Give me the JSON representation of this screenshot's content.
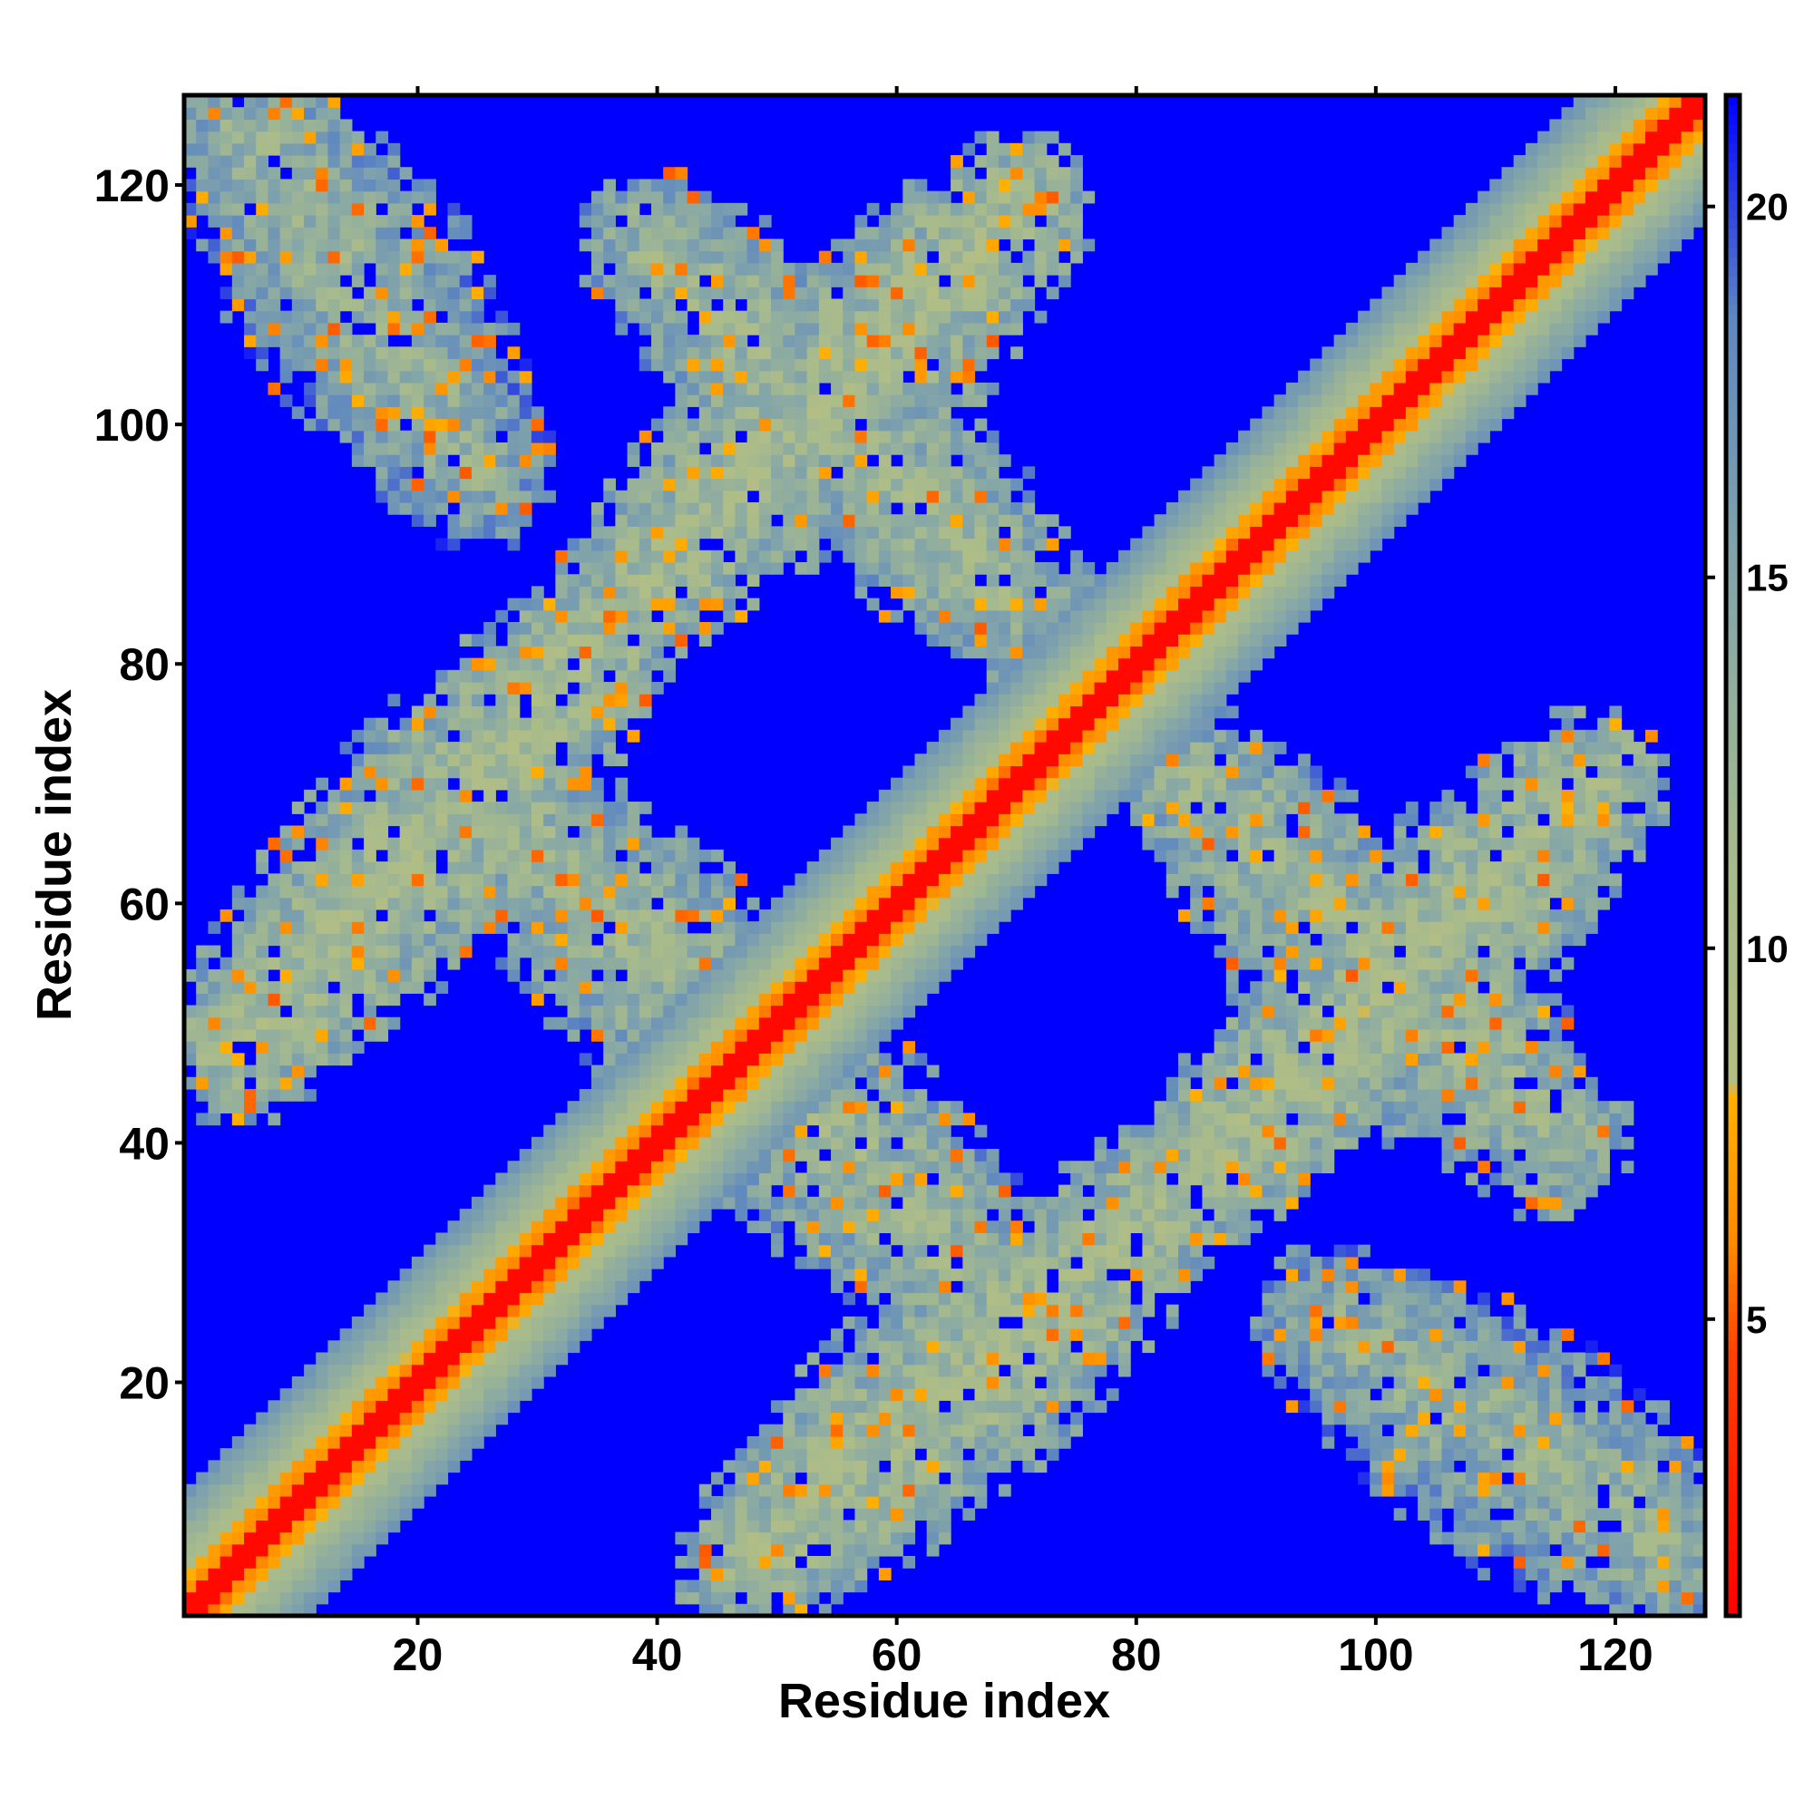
{
  "chart_data": {
    "type": "heatmap",
    "title": "",
    "xlabel": "Residue index",
    "ylabel": "Residue index",
    "xlim": [
      1,
      127
    ],
    "ylim": [
      1,
      127
    ],
    "x_ticks": [
      20,
      40,
      60,
      80,
      100,
      120
    ],
    "y_ticks": [
      20,
      40,
      60,
      80,
      100,
      120
    ],
    "colorbar": {
      "range": [
        1,
        21.5
      ],
      "ticks": [
        5,
        10,
        15,
        20
      ],
      "stops": [
        {
          "value": 1.0,
          "color": "#ff0000"
        },
        {
          "value": 4.5,
          "color": "#ff4000"
        },
        {
          "value": 6.0,
          "color": "#ff8a00"
        },
        {
          "value": 8.0,
          "color": "#ffb000"
        },
        {
          "value": 8.2,
          "color": "#b4be84"
        },
        {
          "value": 11.0,
          "color": "#a8bb8c"
        },
        {
          "value": 15.0,
          "color": "#84a6a8"
        },
        {
          "value": 18.5,
          "color": "#5f88c0"
        },
        {
          "value": 21.5,
          "color": "#0000ff"
        }
      ]
    },
    "structure": {
      "n_residues": 127,
      "background_value": 21.5,
      "diagonal": {
        "core_value": 1.5,
        "orange_halfwidth": 3,
        "band_halfwidth": 10
      },
      "contact_regions": [
        {
          "name": "parallel",
          "residues_a": [
            5,
            35
          ],
          "residues_b": [
            48,
            82
          ],
          "value": 11
        },
        {
          "name": "parallel",
          "residues_a": [
            38,
            70
          ],
          "residues_b": [
            86,
            118
          ],
          "value": 11
        },
        {
          "name": "antiparallel",
          "residues_a": [
            40,
            70
          ],
          "residues_b": [
            55,
            25
          ],
          "value": 12
        },
        {
          "name": "antiparallel",
          "residues_a": [
            85,
            115
          ],
          "residues_b": [
            70,
            40
          ],
          "value": 12
        },
        {
          "name": "antiparallel",
          "residues_a": [
            8,
            24
          ],
          "residues_b": [
            124,
            98
          ],
          "value": 13
        },
        {
          "name": "antiparallel",
          "residues_a": [
            96,
            124
          ],
          "residues_b": [
            25,
            5
          ],
          "value": 13
        }
      ]
    }
  }
}
